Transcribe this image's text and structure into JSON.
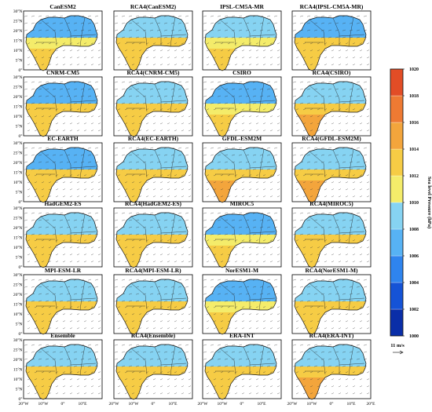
{
  "chart_data": {
    "type": "heatmap",
    "variable": "Sea level Pressure (hPa)",
    "panel_titles": [
      "CanESM2",
      "RCA4(CanESM2)",
      "IPSL-CM5A-MR",
      "RCA4(IPSL-CM5A-MR)",
      "CNRM-CM5",
      "RCA4(CNRM-CM5)",
      "CSIRO",
      "RCA4(CSIRO)",
      "EC-EARTH",
      "RCA4(EC-EARTH)",
      "GFDL-ESM2M",
      "RCA4(GFDL-ESM2M)",
      "HadGEM2-ES",
      "RCA4(HadGEM2-ES)",
      "MIROC5",
      "RCA4(MIROC5)",
      "MPI-ESM-LR",
      "RCA4(MPI-ESM-LR)",
      "NorESM1-M",
      "RCA4(NorESM1-M)",
      "Ensemble",
      "RCA4(Ensemble)",
      "ERA-INT",
      "RCA4(ERA-INT)"
    ],
    "lat_ticks": [
      "30°N",
      "25°N",
      "20°N",
      "15°N",
      "10°N",
      "5°N",
      "0°"
    ],
    "lon_ticks": [
      "20°W",
      "10°W",
      "0°",
      "10°E",
      "20°E"
    ],
    "corner_tick": "20°E",
    "colorbar": {
      "label": "Sea level Pressure (hPa)",
      "min": 1000,
      "max": 1020,
      "ticks": [
        "1020",
        "1018",
        "1016",
        "1014",
        "1012",
        "1010",
        "1008",
        "1006",
        "1004",
        "1002",
        "1000"
      ],
      "colors": [
        "#0a2ea8",
        "#1553d6",
        "#2f84ee",
        "#57b2f4",
        "#86d3f2",
        "#f4ec6a",
        "#f6cc45",
        "#f3a53c",
        "#ee7a33",
        "#e24d26"
      ]
    },
    "reference_vector": "11 m/s",
    "north_pressure_per_panel": [
      1007,
      1008,
      1008,
      1007,
      1007,
      1008,
      1006,
      1009,
      1007,
      1008,
      1009,
      1009,
      1008,
      1008,
      1007,
      1008,
      1008,
      1008,
      1007,
      1008,
      1008,
      1008,
      1008,
      1009
    ],
    "south_pressure_per_panel": [
      1011,
      1012,
      1011,
      1012,
      1012,
      1012,
      1011,
      1013,
      1012,
      1012,
      1013,
      1013,
      1012,
      1012,
      1011,
      1012,
      1012,
      1012,
      1011,
      1012,
      1012,
      1012,
      1012,
      1013
    ]
  }
}
